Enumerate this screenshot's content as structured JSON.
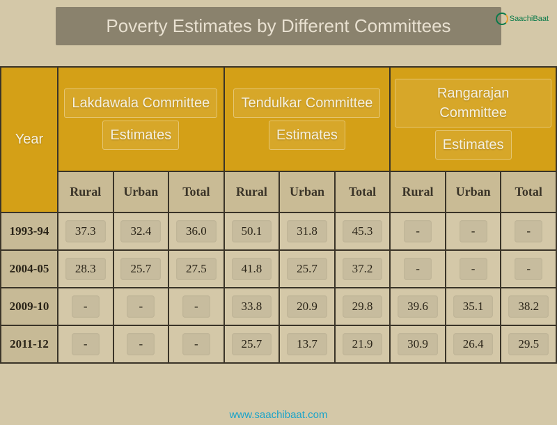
{
  "title": "Poverty Estimates by Different Committees",
  "logo_text": "SaachiBaat",
  "watermark": "www.saachibaat.com",
  "colors": {
    "page_bg": "#d4c8a8",
    "header_gold": "#d4a017",
    "sub_header": "#c9bb95",
    "cell_bg": "#d4c8a8",
    "year_bg": "#c7ba96",
    "border": "#3a3428",
    "title_bg": "rgba(0,0,0,0.35)",
    "title_text": "#e8e0d0",
    "watermark_color": "#1aa3c9"
  },
  "year_header": "Year",
  "committees": [
    {
      "name_l1": "Lakdawala Committee",
      "name_l2": "Estimates"
    },
    {
      "name_l1": "Tendulkar Committee",
      "name_l2": "Estimates"
    },
    {
      "name_l1": "Rangarajan Committee",
      "name_l2": "Estimates"
    }
  ],
  "sub_cols": [
    "Rural",
    "Urban",
    "Total"
  ],
  "rows": [
    {
      "year": "1993-94",
      "vals": [
        "37.3",
        "32.4",
        "36.0",
        "50.1",
        "31.8",
        "45.3",
        "-",
        "-",
        "-"
      ]
    },
    {
      "year": "2004-05",
      "vals": [
        "28.3",
        "25.7",
        "27.5",
        "41.8",
        "25.7",
        "37.2",
        "-",
        "-",
        "-"
      ]
    },
    {
      "year": "2009-10",
      "vals": [
        "-",
        "-",
        "-",
        "33.8",
        "20.9",
        "29.8",
        "39.6",
        "35.1",
        "38.2"
      ]
    },
    {
      "year": "2011-12",
      "vals": [
        "-",
        "-",
        "-",
        "25.7",
        "13.7",
        "21.9",
        "30.9",
        "26.4",
        "29.5"
      ]
    }
  ]
}
